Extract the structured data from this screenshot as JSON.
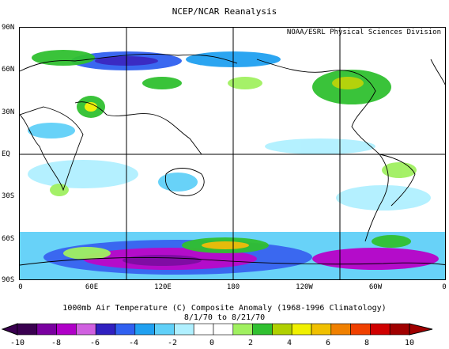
{
  "title": "NCEP/NCAR Reanalysis",
  "credit": "NOAA/ESRL Physical Sciences Division",
  "map": {
    "lat_labels": [
      "90N",
      "60N",
      "30N",
      "EQ",
      "30S",
      "60S",
      "90S"
    ],
    "lon_labels": [
      "0",
      "60E",
      "120E",
      "180",
      "120W",
      "60W",
      "0"
    ],
    "caption_line1": "1000mb Air Temperature (C) Composite Anomaly (1968-1996 Climatology)",
    "caption_line2": "8/1/70  to 8/21/70"
  },
  "colorbar": {
    "labels": [
      "-10",
      "-8",
      "-6",
      "-4",
      "-2",
      "0",
      "2",
      "4",
      "6",
      "8",
      "10"
    ],
    "colors": [
      "#3a0050",
      "#7a00a0",
      "#b000c8",
      "#d060e0",
      "#3020c0",
      "#3060f0",
      "#20a0f0",
      "#60d0f8",
      "#b0f0ff",
      "#ffffff",
      "#ffffff",
      "#a0f060",
      "#30c030",
      "#b0d000",
      "#f0f000",
      "#f0c000",
      "#f08000",
      "#f04000",
      "#d00000",
      "#a00000"
    ]
  }
}
